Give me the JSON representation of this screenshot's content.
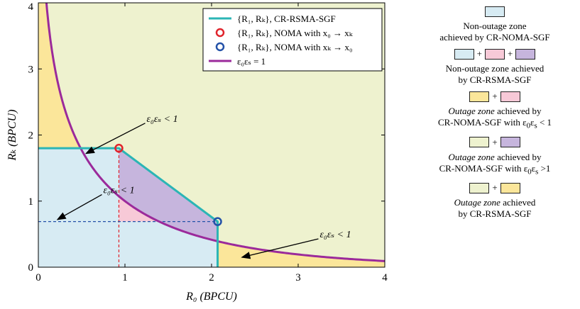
{
  "chart_data": {
    "type": "area",
    "xlabel": "R_0 (BPCU)",
    "ylabel": "R_K (BPCU)",
    "xlim": [
      0,
      4
    ],
    "ylim": [
      0,
      4
    ],
    "xticks": [
      "0",
      "1",
      "2",
      "3",
      "4"
    ],
    "yticks": [
      "0",
      "1",
      "2",
      "3",
      "4"
    ],
    "rsma_region": {
      "name": "{R_1, R_K}, CR-RSMA-SGF",
      "points": [
        [
          0,
          1.8
        ],
        [
          0.93,
          1.8
        ],
        [
          2.07,
          0.69
        ],
        [
          2.07,
          0
        ]
      ],
      "color": "#2bb5b5"
    },
    "noma_markers": [
      {
        "name": "{R_1, R_K}, NOMA with x_0 → x_K",
        "x": 0.93,
        "y": 1.8,
        "color": "#e0242c"
      },
      {
        "name": "{R_1, R_K}, NOMA with x_K → x_0",
        "x": 2.07,
        "y": 0.69,
        "color": "#2452a8"
      }
    ],
    "boundary_curve": {
      "name": "ε_0ε_s = 1",
      "equation": "(2^R0 - 1)(2^RK - 1) = 1",
      "color": "#9b2a9b"
    },
    "dashed_lines": [
      {
        "orientation": "vertical",
        "x": 0.93,
        "from": 0,
        "to": 1.8,
        "color": "#e0242c"
      },
      {
        "orientation": "horizontal",
        "y": 0.69,
        "from": 0,
        "to": 2.07,
        "color": "#2452a8"
      }
    ],
    "annotations": [
      {
        "text": "ε_0ε_s < 1",
        "label_at": [
          1.25,
          2.2
        ],
        "arrow_to": [
          0.55,
          1.72
        ]
      },
      {
        "text": "ε_0ε_s < 1",
        "label_at": [
          0.75,
          1.12
        ],
        "arrow_to": [
          0.22,
          0.72
        ]
      },
      {
        "text": "ε_0ε_s < 1",
        "label_at": [
          3.25,
          0.45
        ],
        "arrow_to": [
          2.35,
          0.15
        ]
      }
    ],
    "legend": {
      "placement": "top-right"
    },
    "grid": false
  },
  "colors": {
    "blue_zone": "#d7ebf3",
    "pink_zone": "#f7c9d7",
    "purple_zone": "#c6b5dd",
    "yellow_zone": "#fbe69a",
    "green_zone": "#eef2cf"
  },
  "key": [
    {
      "swatches": [
        "blue_zone"
      ],
      "caption_html": "Non-outage zone<br>achieved by CR-NOMA-SGF"
    },
    {
      "swatches": [
        "blue_zone",
        "pink_zone",
        "purple_zone"
      ],
      "caption_html": "Non-outage zone achieved<br>by CR-RSMA-SGF"
    },
    {
      "swatches": [
        "yellow_zone",
        "pink_zone"
      ],
      "caption_html": "<i>Outage zone</i> achieved by<br>CR-NOMA-SGF with ε<sub>0</sub>ε<sub>s</sub> &lt; 1"
    },
    {
      "swatches": [
        "green_zone",
        "purple_zone"
      ],
      "caption_html": "<i>Outage zone</i> achieved by<br>CR-NOMA-SGF with ε<sub>0</sub>ε<sub>s</sub> &gt;1"
    },
    {
      "swatches": [
        "green_zone",
        "yellow_zone"
      ],
      "caption_html": "<i>Outage zone</i> achieved<br>by CR-RSMA-SGF"
    }
  ]
}
